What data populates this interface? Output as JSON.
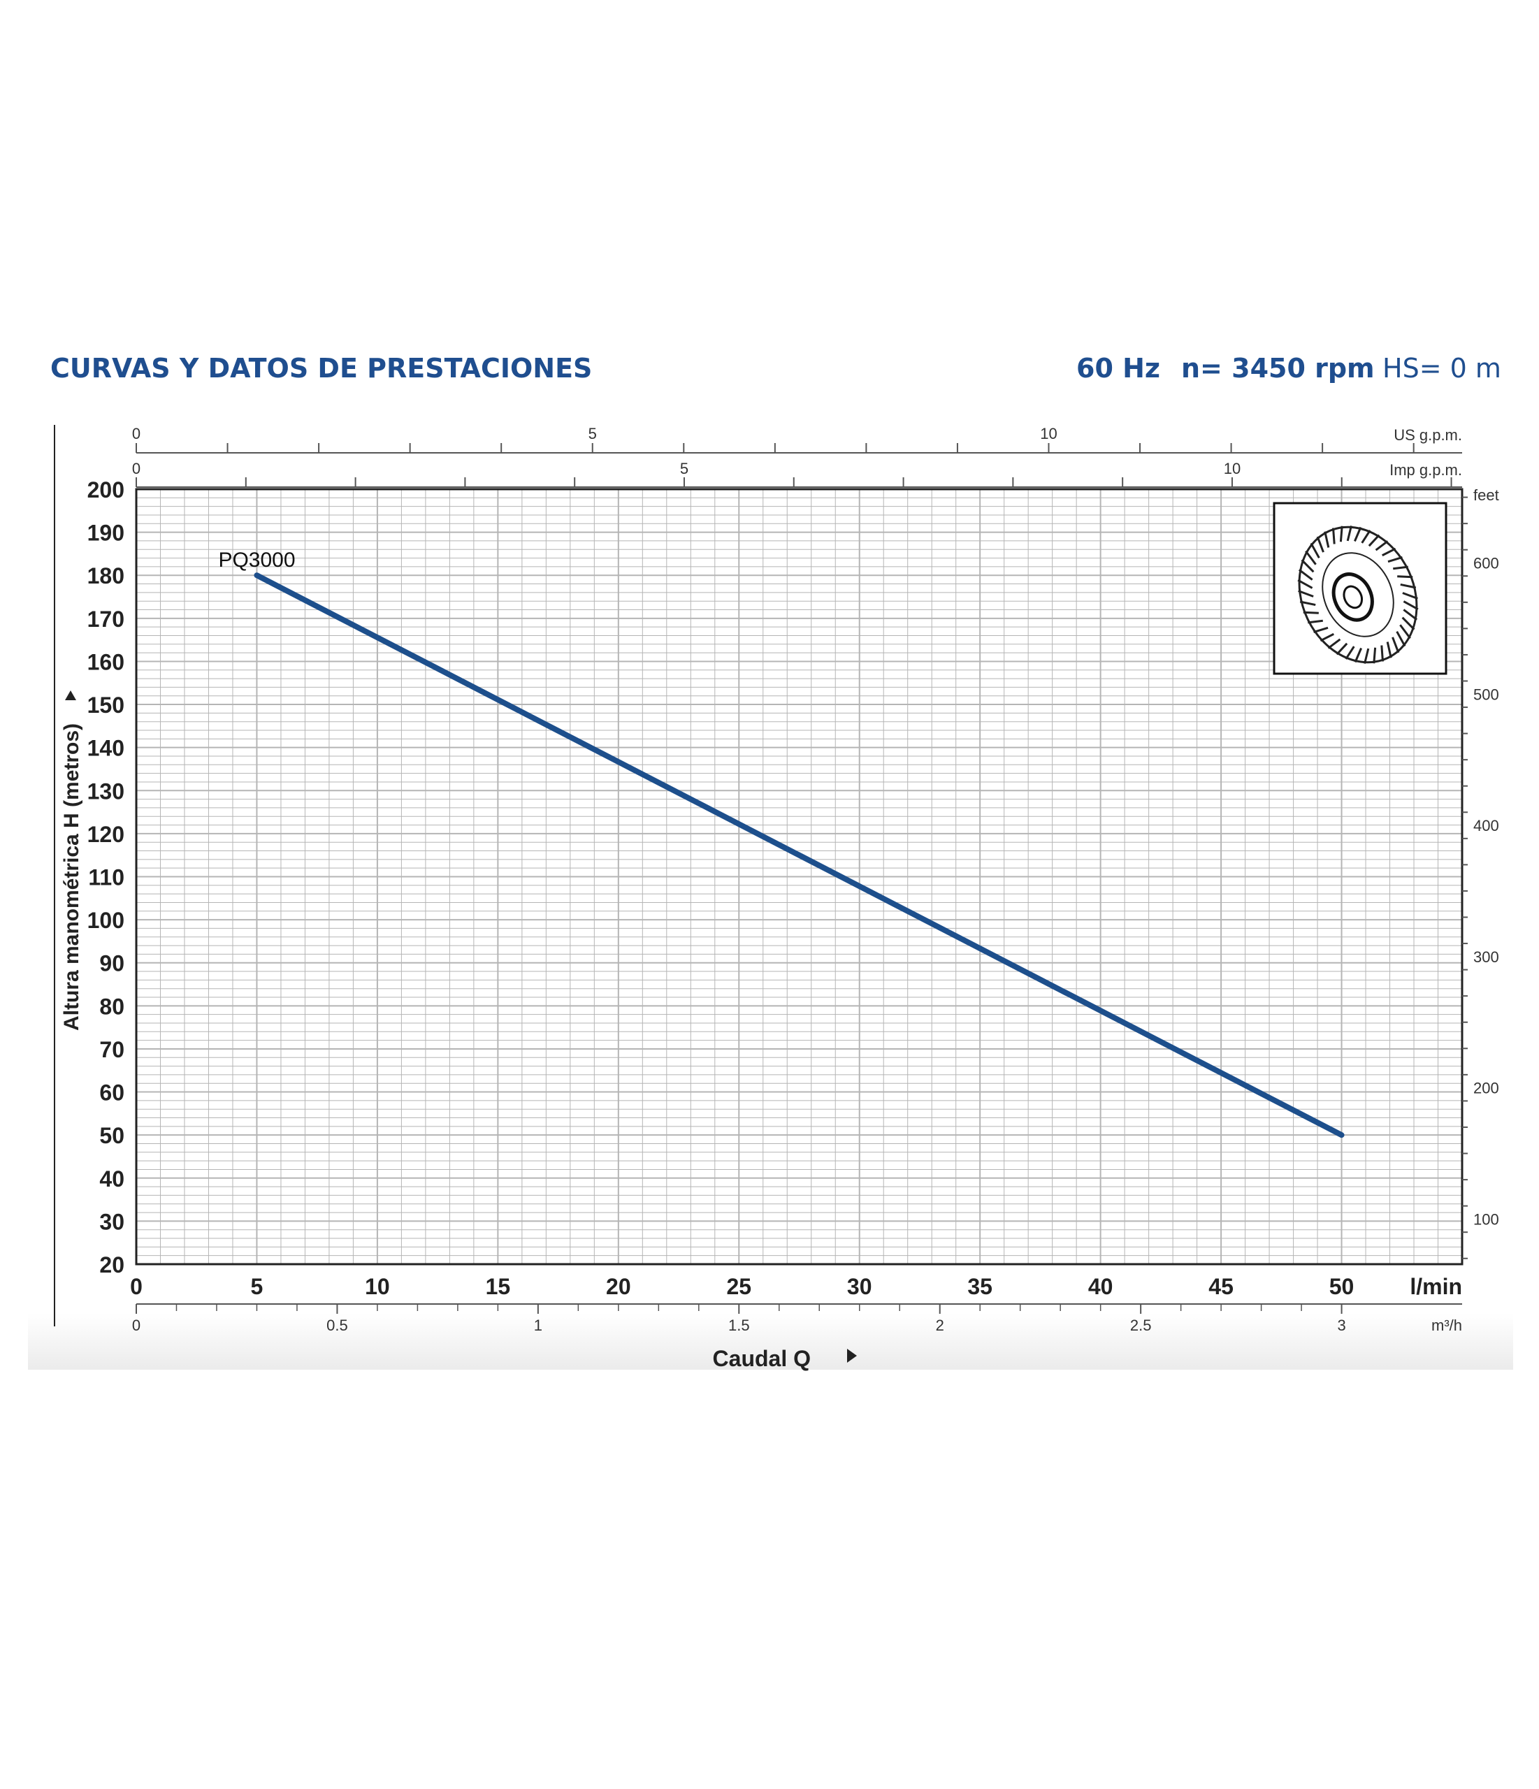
{
  "header": {
    "title": "CURVAS Y DATOS DE PRESTACIONES",
    "frequency": "60 Hz",
    "speed": "n= 3450 rpm",
    "suction": "HS= 0 m"
  },
  "colors": {
    "heading": "#1f4e8f",
    "curve": "#1d4f8c",
    "grid": "#b5b5b5",
    "axis": "#222222"
  },
  "icons": [
    "impeller-icon"
  ],
  "chart_data": {
    "type": "line",
    "xlabel": "Caudal Q",
    "ylabel": "Altura manométrica H (metros)",
    "xlim": [
      0,
      55
    ],
    "ylim": [
      20,
      200
    ],
    "x_unit": "l/min",
    "x_ticks": [
      0,
      5,
      10,
      15,
      20,
      25,
      30,
      35,
      40,
      45,
      50
    ],
    "y_ticks": [
      20,
      30,
      40,
      50,
      60,
      70,
      80,
      90,
      100,
      110,
      120,
      130,
      140,
      150,
      160,
      170,
      180,
      190,
      200
    ],
    "grid": true,
    "series": [
      {
        "name": "PQ3000",
        "x": [
          5,
          50
        ],
        "y": [
          180,
          50
        ]
      }
    ],
    "secondary_axes": {
      "us_gpm": {
        "unit": "US g.p.m.",
        "major_ticks": [
          "0",
          "5",
          "10"
        ]
      },
      "imp_gpm": {
        "unit": "Imp g.p.m.",
        "major_ticks": [
          "0",
          "5",
          "10"
        ]
      },
      "m3h": {
        "unit": "m³/h",
        "major_ticks": [
          "0",
          "0.5",
          "1",
          "1.5",
          "2",
          "2.5",
          "3"
        ]
      },
      "feet": {
        "unit": "feet",
        "major_ticks": [
          "100",
          "200",
          "300",
          "400",
          "500",
          "600"
        ]
      }
    }
  }
}
